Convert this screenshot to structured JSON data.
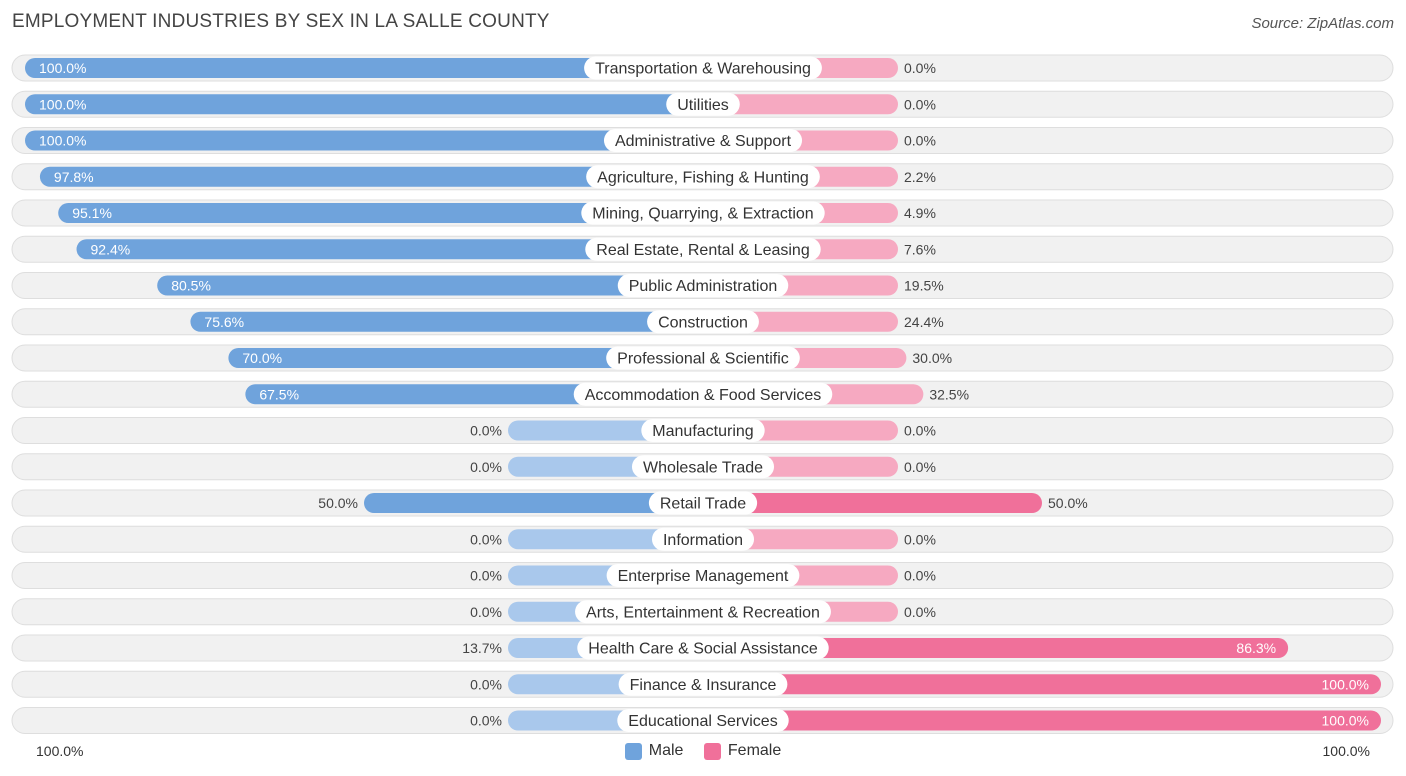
{
  "header": {
    "title": "EMPLOYMENT INDUSTRIES BY SEX IN LA SALLE COUNTY",
    "source": "Source: ZipAtlas.com"
  },
  "axis": {
    "left_label": "100.0%",
    "right_label": "100.0%"
  },
  "legend": {
    "male_label": "Male",
    "female_label": "Female"
  },
  "colors": {
    "male": "#6fa3dc",
    "male_light": "#a9c8ec",
    "female": "#f0709a",
    "female_light": "#f6a9c1",
    "row_bg": "#f1f1f1",
    "row_border": "#dedede"
  },
  "chart_data": {
    "type": "bar",
    "orientation": "horizontal-diverging",
    "title": "EMPLOYMENT INDUSTRIES BY SEX IN LA SALLE COUNTY",
    "xlim": [
      -100,
      100
    ],
    "series": [
      {
        "name": "Male",
        "values": [
          100.0,
          100.0,
          100.0,
          97.8,
          95.1,
          92.4,
          80.5,
          75.6,
          70.0,
          67.5,
          0.0,
          0.0,
          50.0,
          0.0,
          0.0,
          0.0,
          13.7,
          0.0,
          0.0
        ]
      },
      {
        "name": "Female",
        "values": [
          0.0,
          0.0,
          0.0,
          2.2,
          4.9,
          7.6,
          19.5,
          24.4,
          30.0,
          32.5,
          0.0,
          0.0,
          50.0,
          0.0,
          0.0,
          0.0,
          86.3,
          100.0,
          100.0
        ]
      }
    ],
    "categories": [
      "Transportation & Warehousing",
      "Utilities",
      "Administrative & Support",
      "Agriculture, Fishing & Hunting",
      "Mining, Quarrying, & Extraction",
      "Real Estate, Rental & Leasing",
      "Public Administration",
      "Construction",
      "Professional & Scientific",
      "Accommodation & Food Services",
      "Manufacturing",
      "Wholesale Trade",
      "Retail Trade",
      "Information",
      "Enterprise Management",
      "Arts, Entertainment & Recreation",
      "Health Care & Social Assistance",
      "Finance & Insurance",
      "Educational Services"
    ],
    "male_labels": [
      "100.0%",
      "100.0%",
      "100.0%",
      "97.8%",
      "95.1%",
      "92.4%",
      "80.5%",
      "75.6%",
      "70.0%",
      "67.5%",
      "0.0%",
      "0.0%",
      "50.0%",
      "0.0%",
      "0.0%",
      "0.0%",
      "13.7%",
      "0.0%",
      "0.0%"
    ],
    "female_labels": [
      "0.0%",
      "0.0%",
      "0.0%",
      "2.2%",
      "4.9%",
      "7.6%",
      "19.5%",
      "24.4%",
      "30.0%",
      "32.5%",
      "0.0%",
      "0.0%",
      "50.0%",
      "0.0%",
      "0.0%",
      "0.0%",
      "86.3%",
      "100.0%",
      "100.0%"
    ]
  }
}
